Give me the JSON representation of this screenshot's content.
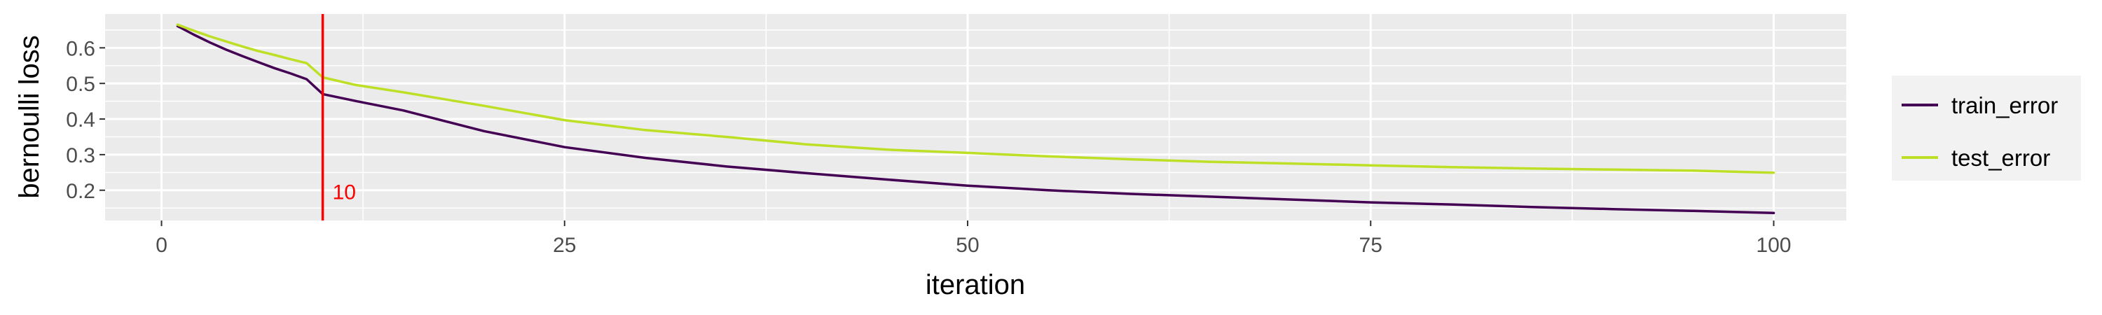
{
  "chart_data": {
    "type": "line",
    "xlabel": "iteration",
    "ylabel": "bernoulli loss",
    "xlim": [
      -3.5,
      104.5
    ],
    "ylim": [
      0.115,
      0.695
    ],
    "xticks": [
      0,
      25,
      50,
      75,
      100
    ],
    "yticks": [
      0.2,
      0.3,
      0.4,
      0.5,
      0.6
    ],
    "xtick_labels": [
      "0",
      "25",
      "50",
      "75",
      "100"
    ],
    "ytick_labels": [
      "0.2",
      "0.3",
      "0.4",
      "0.5",
      "0.6"
    ],
    "grid": true,
    "legend_position": "right",
    "vline": {
      "x": 10,
      "label": "10",
      "color": "#ff0000"
    },
    "series": [
      {
        "name": "train_error",
        "color": "#440154",
        "x": [
          1,
          2,
          3,
          4,
          5,
          6,
          7,
          8,
          9,
          10,
          12,
          15,
          20,
          25,
          30,
          35,
          40,
          45,
          50,
          55,
          60,
          65,
          70,
          75,
          80,
          85,
          90,
          95,
          100
        ],
        "values": [
          0.661,
          0.637,
          0.615,
          0.595,
          0.577,
          0.56,
          0.543,
          0.528,
          0.512,
          0.47,
          0.451,
          0.424,
          0.366,
          0.321,
          0.291,
          0.267,
          0.248,
          0.23,
          0.213,
          0.2,
          0.19,
          0.182,
          0.174,
          0.166,
          0.16,
          0.153,
          0.147,
          0.142,
          0.136
        ]
      },
      {
        "name": "test_error",
        "color": "#bddf26",
        "x": [
          1,
          2,
          3,
          4,
          5,
          6,
          7,
          8,
          9,
          10,
          12,
          15,
          20,
          25,
          30,
          35,
          40,
          45,
          50,
          55,
          60,
          65,
          70,
          75,
          80,
          85,
          90,
          95,
          100
        ],
        "values": [
          0.665,
          0.648,
          0.632,
          0.618,
          0.604,
          0.591,
          0.58,
          0.568,
          0.557,
          0.517,
          0.496,
          0.475,
          0.437,
          0.397,
          0.369,
          0.35,
          0.329,
          0.314,
          0.305,
          0.295,
          0.287,
          0.28,
          0.275,
          0.27,
          0.265,
          0.261,
          0.258,
          0.255,
          0.249
        ]
      }
    ]
  }
}
